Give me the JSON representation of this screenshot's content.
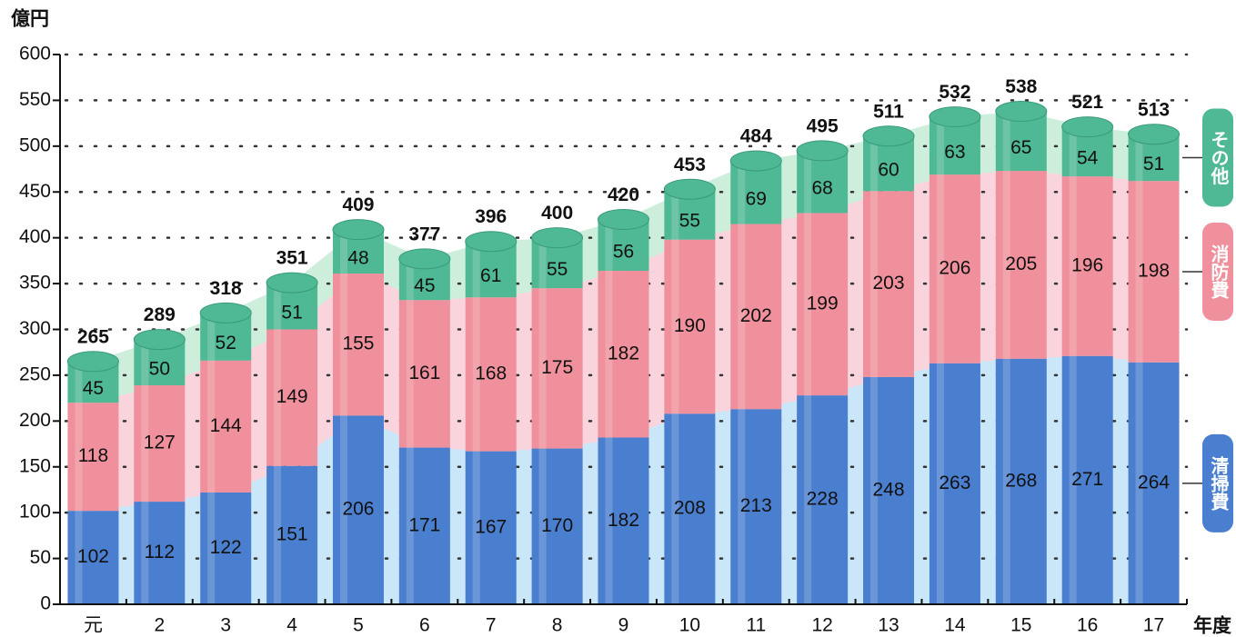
{
  "chart_data": {
    "type": "stacked_bar",
    "y_label": "億円",
    "x_label": "年度",
    "categories": [
      "元",
      "2",
      "3",
      "4",
      "5",
      "6",
      "7",
      "8",
      "9",
      "10",
      "11",
      "12",
      "13",
      "14",
      "15",
      "16",
      "17"
    ],
    "series": [
      {
        "name": "清掃費",
        "color": "#4a7fd0",
        "area_color": "#c9e7f8",
        "values": [
          102,
          112,
          122,
          151,
          206,
          171,
          167,
          170,
          182,
          208,
          213,
          228,
          248,
          263,
          268,
          271,
          264
        ]
      },
      {
        "name": "消防費",
        "color": "#f0909c",
        "area_color": "#f9d4dd",
        "values": [
          118,
          127,
          144,
          149,
          155,
          161,
          168,
          175,
          182,
          190,
          202,
          199,
          203,
          206,
          205,
          196,
          198
        ]
      },
      {
        "name": "その他",
        "color": "#4fb894",
        "area_color": "#ceeedc",
        "values": [
          45,
          50,
          52,
          51,
          48,
          45,
          61,
          55,
          56,
          55,
          69,
          68,
          60,
          63,
          65,
          54,
          51
        ]
      }
    ],
    "totals": [
      265,
      289,
      318,
      351,
      409,
      377,
      396,
      400,
      420,
      453,
      484,
      495,
      511,
      532,
      538,
      521,
      513
    ],
    "ylim": [
      0,
      600
    ],
    "yticks": [
      0,
      50,
      100,
      150,
      200,
      250,
      300,
      350,
      400,
      450,
      500,
      550,
      600
    ],
    "grid": true
  }
}
